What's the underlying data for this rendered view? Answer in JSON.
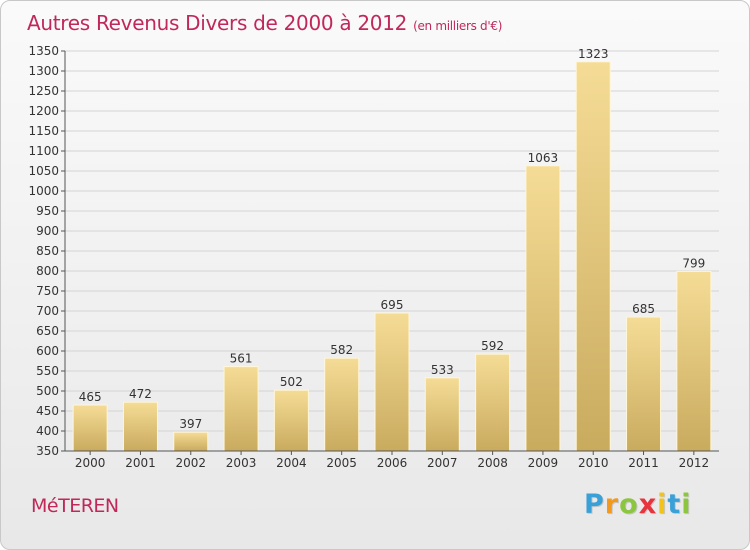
{
  "header": {
    "title": "Autres Revenus Divers de 2000 à 2012",
    "unit": "(en milliers d'€)"
  },
  "footer": {
    "city": "MéTEREN",
    "logo_letters": [
      "P",
      "r",
      "o",
      "x",
      "i",
      "t",
      "i"
    ],
    "logo_colors": [
      "#3aa0d8",
      "#f39a1e",
      "#8cc63f",
      "#e8323c",
      "#f0c419",
      "#3aa0d8",
      "#8cc63f"
    ]
  },
  "chart_data": {
    "type": "bar",
    "title": "Autres Revenus Divers de 2000 à 2012",
    "subtitle": "(en milliers d'€)",
    "categories": [
      "2000",
      "2001",
      "2002",
      "2003",
      "2004",
      "2005",
      "2006",
      "2007",
      "2008",
      "2009",
      "2010",
      "2011",
      "2012"
    ],
    "values": [
      465,
      472,
      397,
      561,
      502,
      582,
      695,
      533,
      592,
      1063,
      1323,
      685,
      799
    ],
    "ylim": [
      350,
      1350
    ],
    "yticks": [
      350,
      400,
      450,
      500,
      550,
      600,
      650,
      700,
      750,
      800,
      850,
      900,
      950,
      1000,
      1050,
      1100,
      1150,
      1200,
      1250,
      1300,
      1350
    ],
    "grid": true,
    "bar_color_light": "#f5dc96",
    "bar_color_dark": "#c9ab5e",
    "grid_color": "#d4d4d4"
  }
}
